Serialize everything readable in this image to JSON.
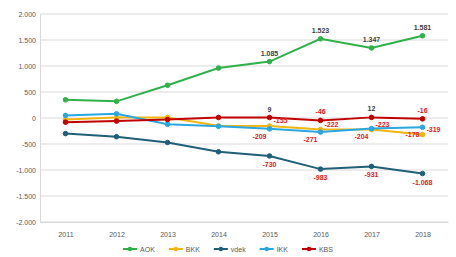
{
  "chart_data": {
    "type": "line",
    "categories": [
      "2011",
      "2012",
      "2013",
      "2014",
      "2015",
      "2016",
      "2017",
      "2018"
    ],
    "series": [
      {
        "name": "AOK",
        "color": "#2fb14a",
        "marker": "circle",
        "values": [
          350,
          320,
          630,
          960,
          1085,
          1523,
          1347,
          1581
        ],
        "value_labels": [
          null,
          null,
          null,
          null,
          "1.085",
          "1.523",
          "1.347",
          "1.581"
        ]
      },
      {
        "name": "BKK",
        "color": "#f2b50f",
        "marker": "circle",
        "values": [
          -30,
          10,
          10,
          -150,
          -155,
          -222,
          -223,
          -319
        ],
        "value_labels": [
          null,
          null,
          null,
          null,
          "-155",
          "-222",
          "-223",
          "-319"
        ]
      },
      {
        "name": "vdek",
        "color": "#1f5f78",
        "marker": "circle",
        "values": [
          -300,
          -360,
          -470,
          -650,
          -730,
          -983,
          -931,
          -1068
        ],
        "value_labels": [
          null,
          null,
          null,
          null,
          "-730",
          "-983",
          "-931",
          "-1.068"
        ]
      },
      {
        "name": "IKK",
        "color": "#2aa7e0",
        "marker": "circle",
        "values": [
          50,
          80,
          -120,
          -160,
          -209,
          -271,
          -204,
          -178
        ],
        "value_labels": [
          null,
          null,
          null,
          null,
          "-209",
          "-271",
          "-204",
          "-178"
        ]
      },
      {
        "name": "KBS",
        "color": "#c00000",
        "marker": "circle",
        "values": [
          -80,
          -60,
          -30,
          10,
          9,
          -46,
          12,
          -16
        ],
        "value_labels": [
          null,
          null,
          null,
          null,
          "9",
          "-46",
          "12",
          "-16"
        ]
      }
    ],
    "ylim": [
      -2000,
      2000
    ],
    "yticks": [
      {
        "value": -2000,
        "label": "-2.000"
      },
      {
        "value": -1500,
        "label": "-1.500"
      },
      {
        "value": -1000,
        "label": "-1.000"
      },
      -500,
      0,
      500,
      {
        "value": 1000,
        "label": "1.000"
      },
      {
        "value": 1500,
        "label": "1.500"
      },
      {
        "value": 2000,
        "label": "2.000"
      }
    ],
    "grid": true,
    "legend": "bottom",
    "data_labels": true
  }
}
